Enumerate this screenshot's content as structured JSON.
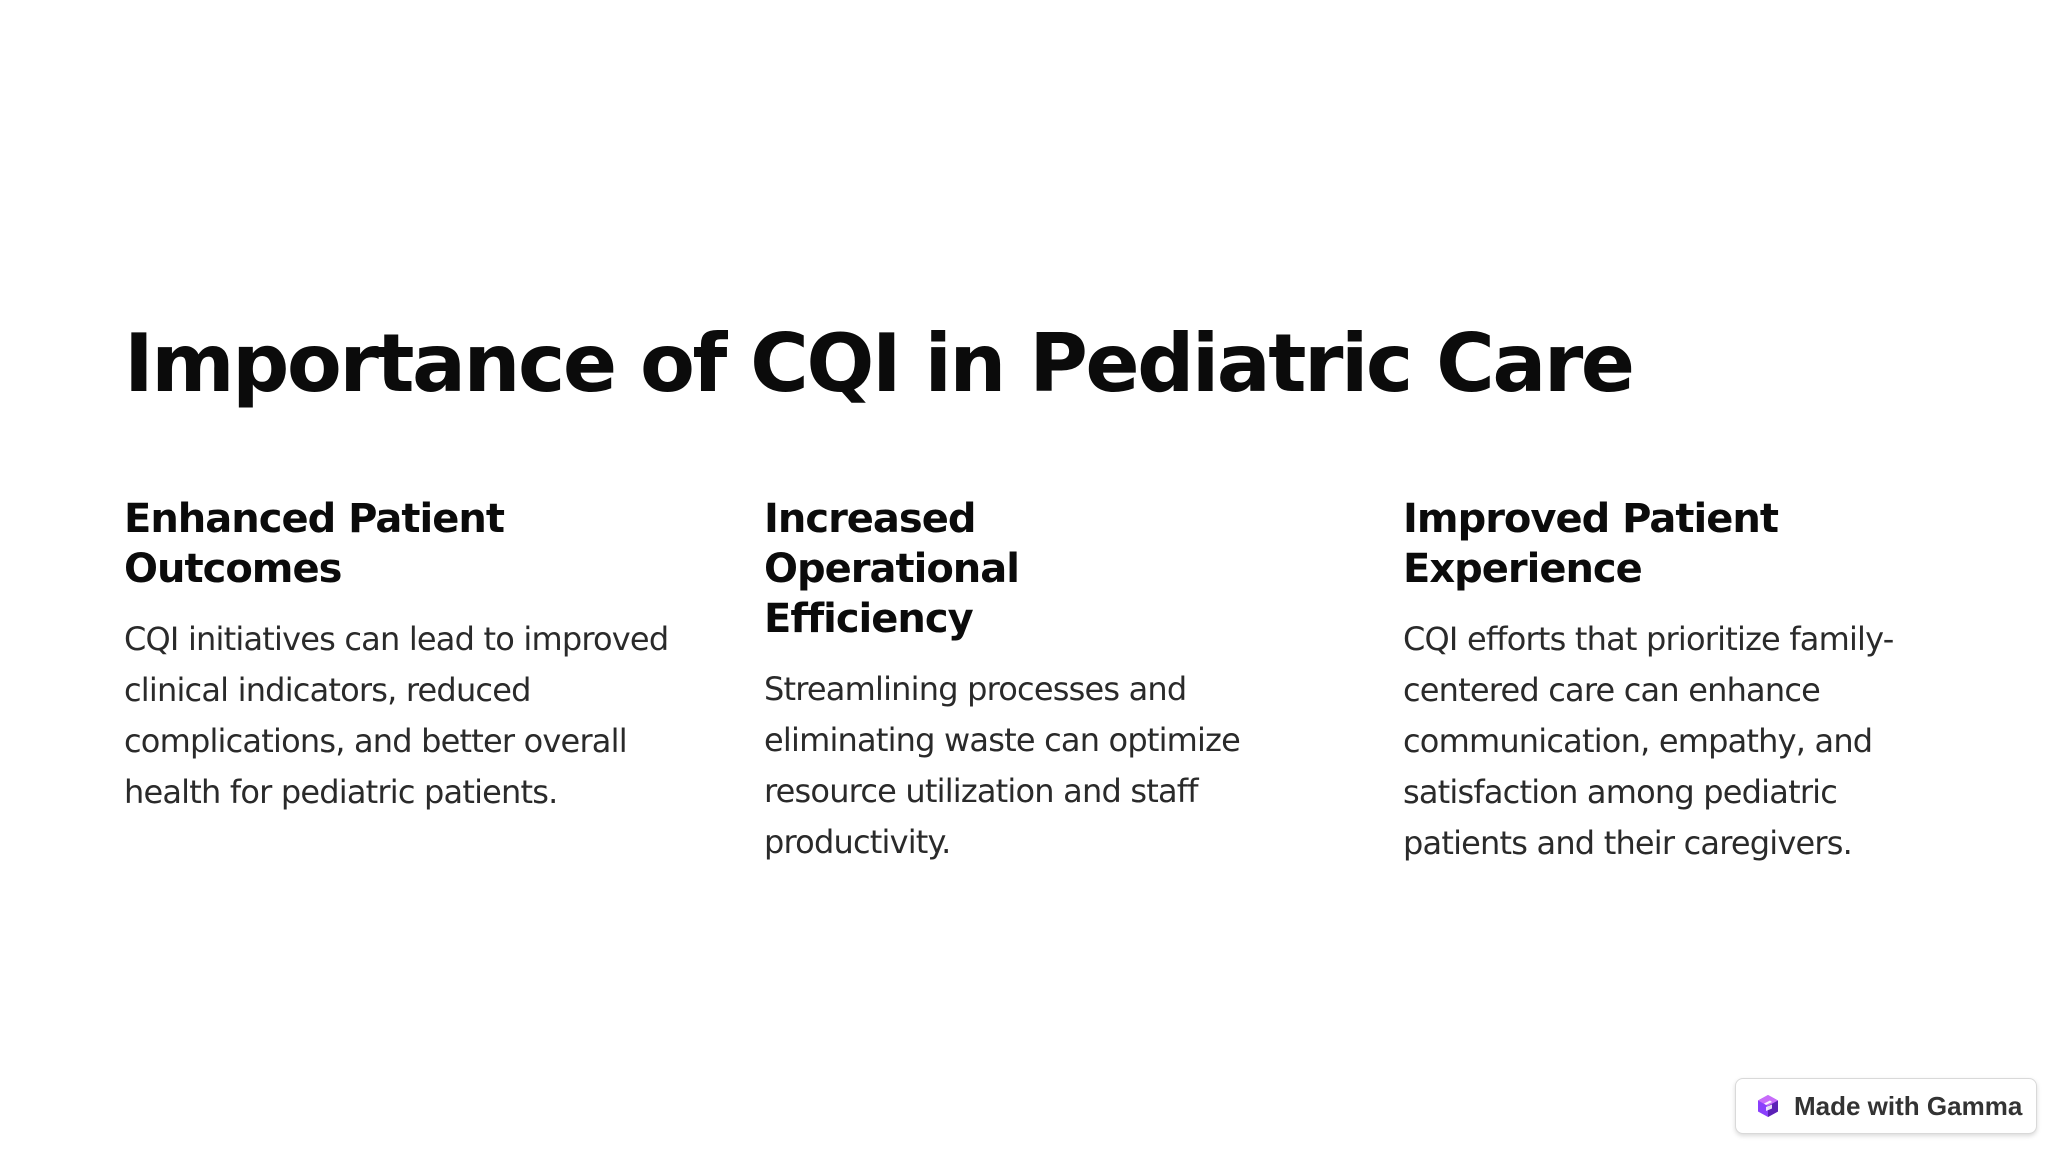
{
  "slide": {
    "title": "Importance of CQI in Pediatric Care",
    "columns": [
      {
        "heading": "Enhanced Patient Outcomes",
        "body": "CQI initiatives can lead to improved clinical indicators, reduced complications, and better overall health for pediatric patients."
      },
      {
        "heading": "Increased Operational Efficiency",
        "body": "Streamlining processes and eliminating waste can optimize resource utilization and staff productivity."
      },
      {
        "heading": "Improved Patient Experience",
        "body": "CQI efforts that prioritize family-centered care can enhance communication, empathy, and satisfaction among pediatric patients and their caregivers."
      }
    ]
  },
  "badge": {
    "label": "Made with Gamma",
    "icon": "gamma-logo-icon",
    "colors": {
      "logo_top": "#c86bfa",
      "logo_mid": "#8a3ffc",
      "logo_dark": "#5b21b6"
    }
  }
}
